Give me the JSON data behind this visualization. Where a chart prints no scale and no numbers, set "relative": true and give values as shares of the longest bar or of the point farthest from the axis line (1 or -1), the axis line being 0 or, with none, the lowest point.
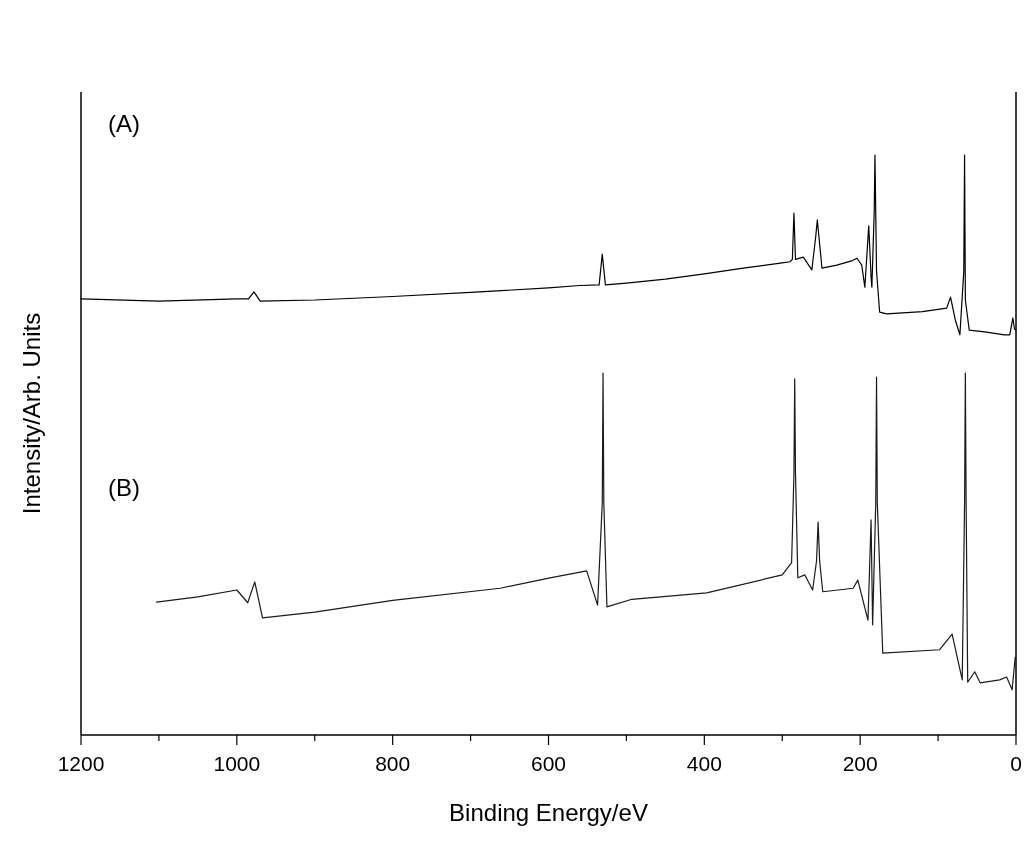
{
  "chart_data": {
    "type": "line",
    "xlabel": "Binding Energy/eV",
    "ylabel": "Intensity/Arb. Units",
    "relative": true,
    "xlim": [
      1200,
      0
    ],
    "xticks": [
      1200,
      {
        "value": 1100,
        "label": null
      },
      1000,
      {
        "value": 900,
        "label": null
      },
      800,
      {
        "value": 700,
        "label": null
      },
      600,
      {
        "value": 500,
        "label": null
      },
      400,
      {
        "value": 300,
        "label": null
      },
      200,
      {
        "value": 100,
        "label": null
      },
      0
    ],
    "annotations": [
      "(A)",
      "(B)"
    ],
    "grid": false,
    "marker": "none",
    "line_style": "solid",
    "series": [
      {
        "color": "#000000",
        "x": [
          1200,
          1100,
          1000,
          985,
          978,
          970,
          900,
          800,
          700,
          600,
          560,
          535,
          531,
          527,
          500,
          450,
          400,
          350,
          300,
          290,
          287,
          285,
          283,
          273,
          262,
          257,
          255,
          253,
          249,
          230,
          210,
          204,
          198,
          194,
          189,
          186,
          185,
          182,
          181,
          179,
          175,
          166,
          120,
          89,
          84,
          78,
          72,
          67,
          66,
          65,
          60,
          40,
          15,
          8,
          4,
          2,
          0
        ],
        "values": [
          0.752,
          0.748,
          0.752,
          0.752,
          0.764,
          0.748,
          0.75,
          0.756,
          0.763,
          0.771,
          0.775,
          0.776,
          0.829,
          0.776,
          0.779,
          0.786,
          0.795,
          0.805,
          0.814,
          0.816,
          0.82,
          0.9,
          0.82,
          0.824,
          0.802,
          0.86,
          0.888,
          0.86,
          0.805,
          0.81,
          0.818,
          0.822,
          0.81,
          0.772,
          0.878,
          0.79,
          0.772,
          0.9,
          1.0,
          0.8,
          0.729,
          0.726,
          0.73,
          0.736,
          0.755,
          0.716,
          0.69,
          0.8,
          1.0,
          0.75,
          0.698,
          0.695,
          0.69,
          0.69,
          0.719,
          0.7,
          0.698
        ]
      },
      {
        "color": "#1a1a1a",
        "x": [
          1103,
          1050,
          1000,
          986,
          977,
          967,
          900,
          800,
          662,
          598,
          551,
          537,
          531,
          530,
          529,
          525,
          493,
          397,
          300,
          288,
          285,
          284,
          283,
          280,
          271,
          261,
          256,
          254,
          252,
          248,
          209,
          203,
          190,
          186,
          184,
          180,
          179,
          178,
          171,
          98,
          82,
          69,
          66,
          65,
          64,
          62,
          53,
          46,
          21,
          12,
          5,
          1
        ],
        "values": [
          0.229,
          0.238,
          0.25,
          0.228,
          0.264,
          0.202,
          0.212,
          0.232,
          0.253,
          0.271,
          0.283,
          0.224,
          0.4,
          0.624,
          0.4,
          0.221,
          0.234,
          0.245,
          0.276,
          0.297,
          0.45,
          0.614,
          0.45,
          0.271,
          0.276,
          0.25,
          0.3,
          0.367,
          0.3,
          0.247,
          0.253,
          0.267,
          0.198,
          0.371,
          0.19,
          0.4,
          0.617,
          0.4,
          0.141,
          0.147,
          0.174,
          0.095,
          0.4,
          0.624,
          0.4,
          0.091,
          0.109,
          0.09,
          0.095,
          0.1,
          0.078,
          0.134
        ]
      }
    ]
  }
}
